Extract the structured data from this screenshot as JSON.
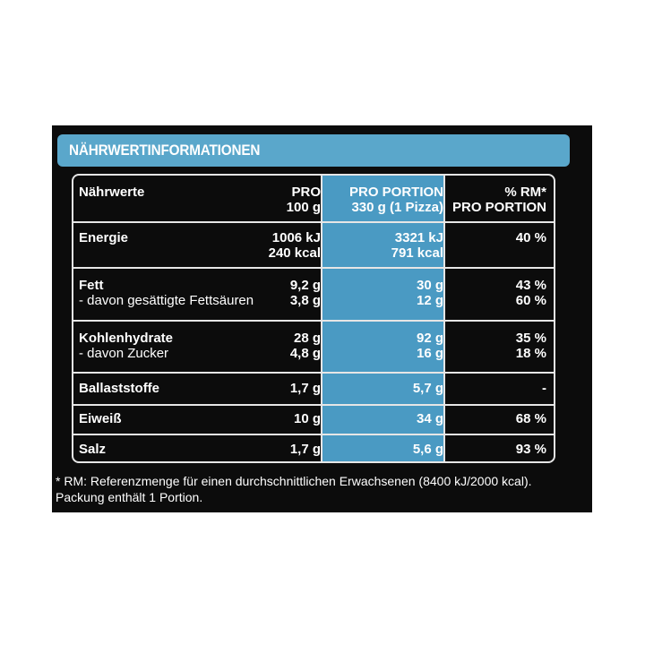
{
  "header": {
    "title": "NÄHRWERTINFORMATIONEN"
  },
  "columns": {
    "label": "Nährwerte",
    "per100_line1": "PRO",
    "per100_line2": "100 g",
    "portion_line1": "PRO PORTION",
    "portion_line2": "330  g (1 Pizza)",
    "rm_line1": "% RM*",
    "rm_line2": "PRO PORTION"
  },
  "rows": {
    "energie": {
      "label": "Energie",
      "per100_kj": "1006 kJ",
      "per100_kcal": "240 kcal",
      "portion_kj": "3321 kJ",
      "portion_kcal": "791 kcal",
      "rm": "40 %"
    },
    "fett": {
      "label": "Fett",
      "sub_label": "- davon gesättigte Fettsäuren",
      "per100": "9,2 g",
      "per100_sub": "3,8 g",
      "portion": "30 g",
      "portion_sub": "12 g",
      "rm": "43 %",
      "rm_sub": "60 %"
    },
    "kohlenhydrate": {
      "label": "Kohlenhydrate",
      "sub_label": "- davon Zucker",
      "per100": "28 g",
      "per100_sub": "4,8 g",
      "portion": "92 g",
      "portion_sub": "16 g",
      "rm": "35 %",
      "rm_sub": "18 %"
    },
    "ballaststoffe": {
      "label": "Ballaststoffe",
      "per100": "1,7 g",
      "portion": "5,7 g",
      "rm": "-"
    },
    "eiweiss": {
      "label": "Eiweiß",
      "per100": "10 g",
      "portion": "34 g",
      "rm": "68 %"
    },
    "salz": {
      "label": "Salz",
      "per100": "1,7 g",
      "portion": "5,6 g",
      "rm": "93 %"
    }
  },
  "footnote": {
    "line1": "* RM: Referenzmenge für einen durchschnittlichen Erwachsenen (8400 kJ/2000 kcal).",
    "line2": "Packung enthält 1 Portion."
  },
  "colors": {
    "background": "#0c0c0c",
    "accent_blue": "#4a9ac3",
    "header_blue": "#5aa7cb",
    "text": "#ffffff"
  }
}
